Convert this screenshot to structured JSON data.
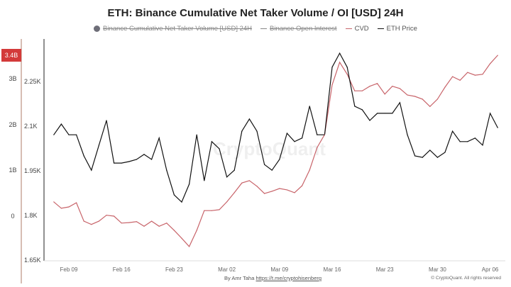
{
  "chart_data": {
    "type": "line",
    "title": "ETH: Binance Cumulative Net Taker Volume / OI [USD] 24H",
    "legend": [
      {
        "name": "Binance Cumulative Net Taker Volume [USD] 24H",
        "visible": false,
        "color": "#6e6e78"
      },
      {
        "name": "Binance Open Interest",
        "visible": false,
        "color": "#888888"
      },
      {
        "name": "CVD",
        "visible": true,
        "color": "#c8646a"
      },
      {
        "name": "ETH Price",
        "visible": true,
        "color": "#111111"
      }
    ],
    "legend_placement": "top",
    "x_ticks": [
      "Feb 09",
      "Feb 16",
      "Feb 23",
      "Mar 02",
      "Mar 09",
      "Mar 16",
      "Mar 23",
      "Mar 30",
      "Apr 06"
    ],
    "y_left_ticks": [
      "3B",
      "2B",
      "1B",
      "0"
    ],
    "y_left_current": "3.4B",
    "y_right_ticks": [
      "2.25K",
      "2.1K",
      "1.95K",
      "1.8K",
      "1.65K"
    ],
    "y_price_range": [
      1650,
      2350
    ],
    "grid": false,
    "x": [
      "Feb 07",
      "Feb 08",
      "Feb 09",
      "Feb 10",
      "Feb 11",
      "Feb 12",
      "Feb 13",
      "Feb 14",
      "Feb 15",
      "Feb 16",
      "Feb 17",
      "Feb 18",
      "Feb 19",
      "Feb 20",
      "Feb 21",
      "Feb 22",
      "Feb 23",
      "Feb 24",
      "Feb 25",
      "Feb 26",
      "Feb 27",
      "Feb 28",
      "Mar 01",
      "Mar 02",
      "Mar 03",
      "Mar 04",
      "Mar 05",
      "Mar 06",
      "Mar 07",
      "Mar 08",
      "Mar 09",
      "Mar 10",
      "Mar 11",
      "Mar 12",
      "Mar 13",
      "Mar 14",
      "Mar 15",
      "Mar 16",
      "Mar 17",
      "Mar 18",
      "Mar 19",
      "Mar 20",
      "Mar 21",
      "Mar 22",
      "Mar 23",
      "Mar 24",
      "Mar 25",
      "Mar 26",
      "Mar 27",
      "Mar 28",
      "Mar 29",
      "Mar 30",
      "Mar 31",
      "Apr 01",
      "Apr 02",
      "Apr 03",
      "Apr 04",
      "Apr 05",
      "Apr 06",
      "Apr 07"
    ],
    "series": [
      {
        "name": "ETH Price",
        "unit": "USD",
        "values": [
          2071,
          2107,
          2071,
          2071,
          2000,
          1952,
          2036,
          2119,
          1976,
          1976,
          1981,
          1988,
          2005,
          1988,
          2060,
          1952,
          1869,
          1845,
          1905,
          2071,
          1917,
          2048,
          2024,
          1929,
          1952,
          2083,
          2124,
          2083,
          1971,
          1952,
          1988,
          2076,
          2048,
          2060,
          2167,
          2071,
          2071,
          2298,
          2345,
          2298,
          2167,
          2155,
          2119,
          2143,
          2143,
          2143,
          2179,
          2071,
          2000,
          1995,
          2019,
          1995,
          2012,
          2083,
          2048,
          2048,
          2060,
          2036,
          2143,
          2095
        ]
      },
      {
        "name": "CVD",
        "unit": "B USD",
        "values": [
          0.31,
          0.17,
          0.2,
          0.29,
          -0.11,
          -0.18,
          -0.11,
          0.02,
          0,
          -0.15,
          -0.14,
          -0.12,
          -0.22,
          -0.11,
          -0.22,
          -0.15,
          -0.31,
          -0.48,
          -0.66,
          -0.31,
          0.12,
          0.12,
          0.14,
          0.31,
          0.51,
          0.72,
          0.77,
          0.65,
          0.49,
          0.54,
          0.6,
          0.57,
          0.51,
          0.66,
          1.0,
          1.49,
          1.77,
          2.85,
          3.34,
          3.08,
          2.72,
          2.72,
          2.82,
          2.88,
          2.65,
          2.82,
          2.77,
          2.63,
          2.6,
          2.54,
          2.38,
          2.54,
          2.8,
          3.03,
          2.95,
          3.12,
          3.06,
          3.08,
          3.31,
          3.49
        ]
      }
    ]
  },
  "footer": {
    "author": "By Amr Taha",
    "link": "https://t.me/cryptohisenberg",
    "copyright": "© CryptoQuant. All rights reserved",
    "watermark": "CryptoQuant"
  }
}
